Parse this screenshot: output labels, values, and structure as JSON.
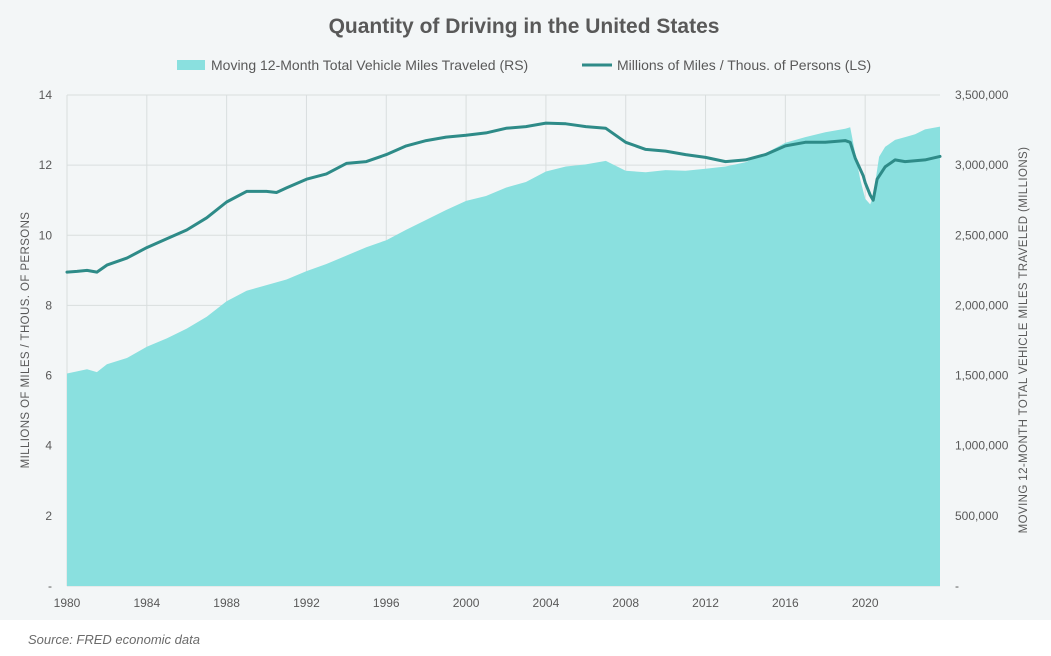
{
  "source_note": "Source: FRED economic data",
  "chart_data": {
    "type": "area",
    "title": "Quantity of Driving in the United States",
    "legend_position": "top",
    "grid": true,
    "x_tick_labels": [
      "1980",
      "1984",
      "1988",
      "1992",
      "1996",
      "2000",
      "2004",
      "2008",
      "2012",
      "2016",
      "2020"
    ],
    "x_range": [
      1980,
      2023.75
    ],
    "y_left": {
      "label": "MILLIONS OF MILES / THOUS. OF PERSONS",
      "range": [
        0,
        14
      ],
      "tick_values": [
        0,
        2,
        4,
        6,
        8,
        10,
        12,
        14
      ],
      "tick_labels": [
        "-",
        "2",
        "4",
        "6",
        "8",
        "10",
        "12",
        "14"
      ]
    },
    "y_right": {
      "label": "MOVING 12-MONTH TOTAL VEHICLE MILES TRAVELED (MILLIONS)",
      "range": [
        0,
        3500000
      ],
      "tick_values": [
        0,
        500000,
        1000000,
        1500000,
        2000000,
        2500000,
        3000000,
        3500000
      ],
      "tick_labels": [
        "-",
        "500,000",
        "1,000,000",
        "1,500,000",
        "2,000,000",
        "2,500,000",
        "3,000,000",
        "3,500,000"
      ]
    },
    "series": [
      {
        "name": "Moving 12-Month Total Vehicle Miles Traveled (RS)",
        "type": "area",
        "axis": "right",
        "color": "#8ae0df",
        "x": [
          1980,
          1981,
          1981.5,
          1982,
          1983,
          1984,
          1985,
          1986,
          1987,
          1988,
          1989,
          1990,
          1991,
          1992,
          1993,
          1994,
          1995,
          1996,
          1997,
          1998,
          1999,
          2000,
          2001,
          2002,
          2003,
          2004,
          2005,
          2006,
          2007,
          2008,
          2009,
          2010,
          2011,
          2012,
          2013,
          2014,
          2015,
          2016,
          2017,
          2018,
          2019,
          2019.25,
          2019.75,
          2020,
          2020.25,
          2020.4,
          2020.7,
          2021,
          2021.5,
          2022,
          2022.5,
          2023,
          2023.75
        ],
        "values": [
          1515000,
          1545000,
          1525000,
          1580000,
          1625000,
          1705000,
          1765000,
          1835000,
          1920000,
          2030000,
          2105000,
          2145000,
          2185000,
          2245000,
          2295000,
          2355000,
          2415000,
          2465000,
          2540000,
          2610000,
          2680000,
          2745000,
          2780000,
          2840000,
          2880000,
          2955000,
          2990000,
          3005000,
          3030000,
          2960000,
          2950000,
          2965000,
          2960000,
          2975000,
          2990000,
          3020000,
          3085000,
          3160000,
          3200000,
          3235000,
          3260000,
          3270000,
          2900000,
          2760000,
          2720000,
          2780000,
          3060000,
          3130000,
          3180000,
          3200000,
          3220000,
          3255000,
          3275000
        ]
      },
      {
        "name": "Millions of Miles / Thous. of Persons (LS)",
        "type": "line",
        "axis": "left",
        "color": "#2e8b88",
        "x": [
          1980,
          1980.5,
          1981,
          1981.5,
          1982,
          1983,
          1984,
          1985,
          1986,
          1987,
          1988,
          1989,
          1990,
          1990.5,
          1991,
          1992,
          1993,
          1994,
          1995,
          1996,
          1997,
          1998,
          1999,
          2000,
          2001,
          2002,
          2003,
          2004,
          2005,
          2006,
          2007,
          2008,
          2009,
          2010,
          2011,
          2012,
          2013,
          2014,
          2015,
          2016,
          2017,
          2018,
          2019,
          2019.25,
          2019.5,
          2019.9,
          2020,
          2020.25,
          2020.4,
          2020.6,
          2021,
          2021.5,
          2022,
          2023,
          2023.75
        ],
        "values": [
          8.95,
          8.97,
          9.0,
          8.95,
          9.15,
          9.35,
          9.65,
          9.9,
          10.15,
          10.5,
          10.95,
          11.25,
          11.25,
          11.22,
          11.35,
          11.6,
          11.75,
          12.05,
          12.1,
          12.3,
          12.55,
          12.7,
          12.8,
          12.85,
          12.92,
          13.05,
          13.1,
          13.2,
          13.18,
          13.1,
          13.05,
          12.65,
          12.45,
          12.4,
          12.3,
          12.22,
          12.1,
          12.15,
          12.3,
          12.55,
          12.65,
          12.65,
          12.7,
          12.65,
          12.2,
          11.7,
          11.5,
          11.15,
          11.0,
          11.6,
          11.95,
          12.15,
          12.1,
          12.15,
          12.25
        ]
      }
    ]
  }
}
